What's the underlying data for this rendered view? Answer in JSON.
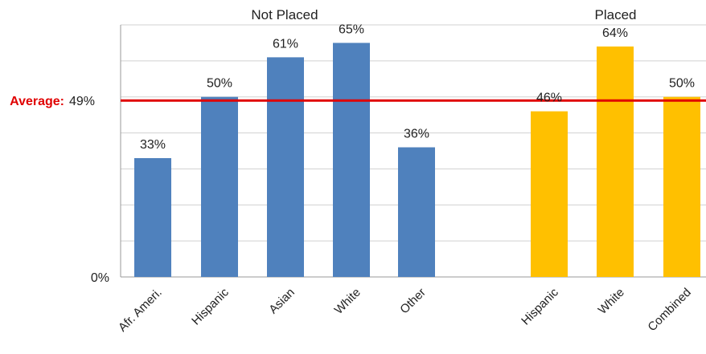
{
  "chart_data": {
    "type": "bar",
    "groups": [
      {
        "name": "Not Placed",
        "color": "#4F81BD",
        "categories": [
          "Afr. Ameri.",
          "Hispanic",
          "Asian",
          "White",
          "Other"
        ],
        "values": [
          33,
          50,
          61,
          65,
          36
        ],
        "labels": [
          "33%",
          "50%",
          "61%",
          "65%",
          "36%"
        ]
      },
      {
        "name": "Placed",
        "color": "#FFC000",
        "categories": [
          "Hispanic",
          "White",
          "Combined"
        ],
        "values": [
          46,
          64,
          50
        ],
        "labels": [
          "46%",
          "64%",
          "50%"
        ]
      }
    ],
    "y_tick_labels": [
      "0%"
    ],
    "ylim": [
      0,
      70
    ],
    "grid": true,
    "average": {
      "label": "Average:",
      "value": 49,
      "value_label": "49%",
      "color": "#E00000"
    }
  }
}
